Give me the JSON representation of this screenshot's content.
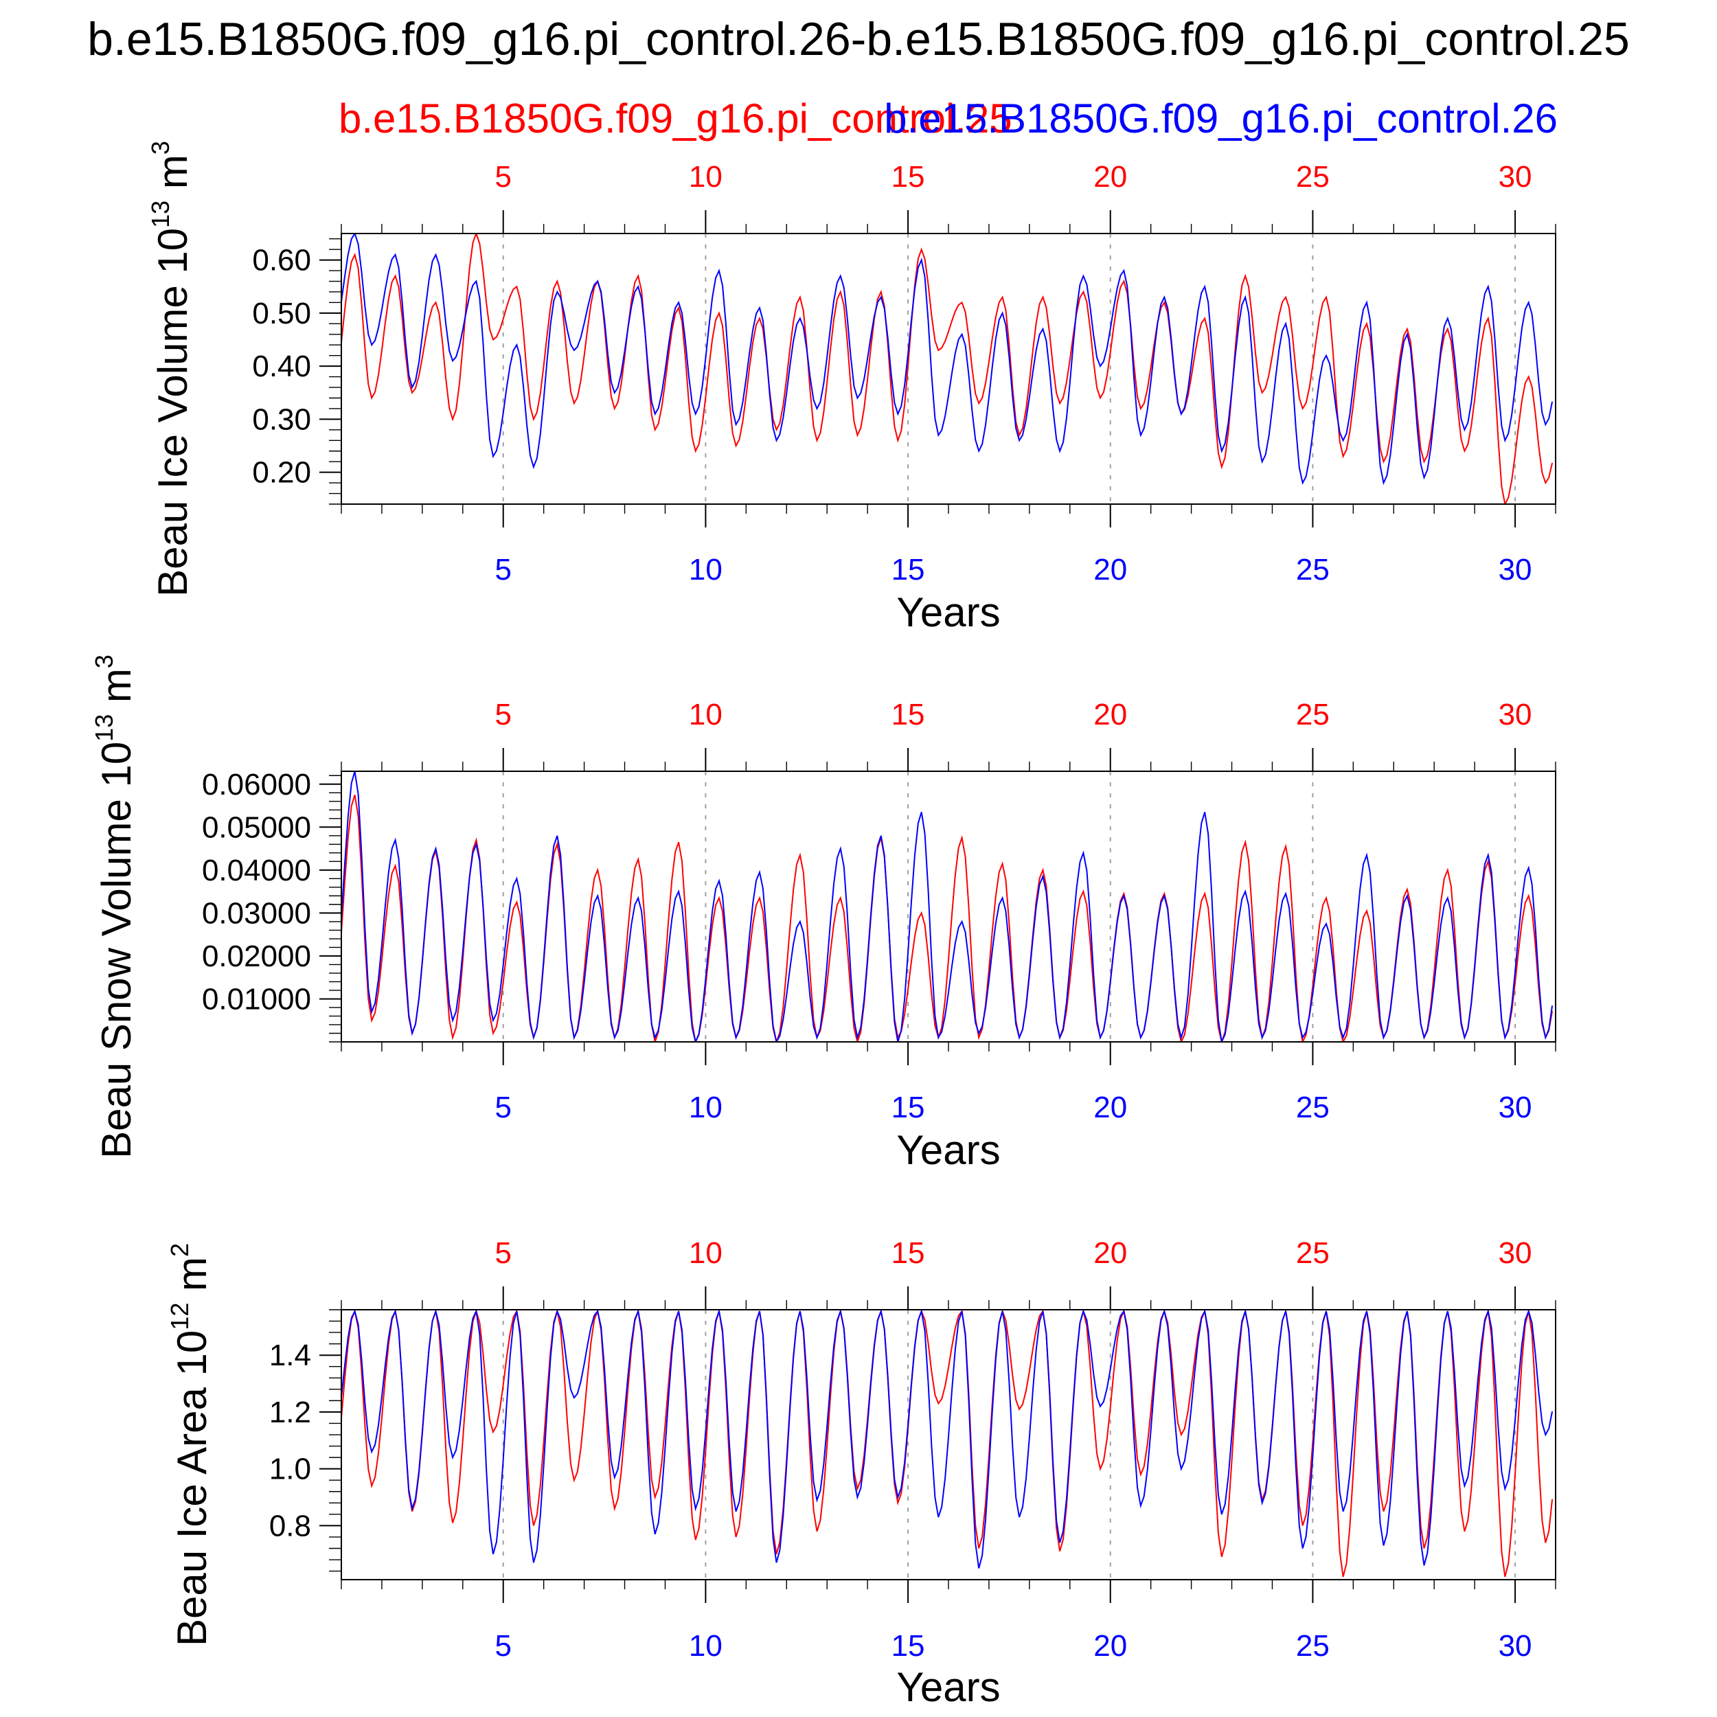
{
  "figure": {
    "title": "b.e15.B1850G.f09_g16.pi_control.26-b.e15.B1850G.f09_g16.pi_control.25",
    "legend": [
      {
        "label": "b.e15.B1850G.f09_g16.pi_control.25",
        "color": "#ff0000"
      },
      {
        "label": "b.e15.B1850G.f09_g16.pi_control.26",
        "color": "#0000ff"
      }
    ]
  },
  "chart_data": [
    {
      "type": "line",
      "title": "",
      "xlabel": "Years",
      "ylabel": "Beau Ice Volume 10^13 m^3",
      "ylabel_parts": {
        "base": "Beau Ice Volume 10",
        "exp1": "13",
        "unit": " m",
        "exp2": "3"
      },
      "xlim": [
        1,
        31
      ],
      "ylim": [
        0.14,
        0.65
      ],
      "yticks": [
        0.2,
        0.3,
        0.4,
        0.5,
        0.6
      ],
      "ytick_labels": [
        "0.20",
        "0.30",
        "0.40",
        "0.50",
        "0.60"
      ],
      "xticks": [
        5,
        10,
        15,
        20,
        25,
        30
      ],
      "xtick_labels": [
        "5",
        "10",
        "15",
        "20",
        "25",
        "30"
      ],
      "series": [
        {
          "name": "b.e15.B1850G.f09_g16.pi_control.25",
          "color": "#ff0000",
          "x_start": 1,
          "points_per_year": 1,
          "max": [
            0.61,
            0.57,
            0.52,
            0.65,
            0.55,
            0.56,
            0.56,
            0.57,
            0.51,
            0.5,
            0.49,
            0.53,
            0.54,
            0.54,
            0.62,
            0.52,
            0.53,
            0.53,
            0.54,
            0.56,
            0.52,
            0.49,
            0.57,
            0.53,
            0.53,
            0.48,
            0.47,
            0.47,
            0.49,
            0.38
          ],
          "min": [
            0.34,
            0.35,
            0.3,
            0.45,
            0.3,
            0.33,
            0.32,
            0.28,
            0.24,
            0.25,
            0.28,
            0.26,
            0.27,
            0.26,
            0.43,
            0.33,
            0.27,
            0.33,
            0.34,
            0.32,
            0.31,
            0.21,
            0.35,
            0.32,
            0.23,
            0.22,
            0.22,
            0.24,
            0.14,
            0.18
          ]
        },
        {
          "name": "b.e15.B1850G.f09_g16.pi_control.26",
          "color": "#0000ff",
          "x_start": 1,
          "points_per_year": 1,
          "max": [
            0.65,
            0.61,
            0.61,
            0.56,
            0.44,
            0.54,
            0.56,
            0.55,
            0.52,
            0.58,
            0.51,
            0.49,
            0.57,
            0.53,
            0.6,
            0.46,
            0.5,
            0.47,
            0.57,
            0.58,
            0.53,
            0.55,
            0.53,
            0.48,
            0.42,
            0.52,
            0.46,
            0.49,
            0.55,
            0.52
          ],
          "min": [
            0.44,
            0.36,
            0.41,
            0.23,
            0.21,
            0.43,
            0.35,
            0.31,
            0.31,
            0.29,
            0.26,
            0.32,
            0.34,
            0.31,
            0.27,
            0.24,
            0.26,
            0.24,
            0.4,
            0.27,
            0.31,
            0.24,
            0.22,
            0.18,
            0.26,
            0.18,
            0.19,
            0.28,
            0.26,
            0.29
          ]
        }
      ]
    },
    {
      "type": "line",
      "title": "",
      "xlabel": "Years",
      "ylabel": "Beau Snow Volume 10^13 m^3",
      "ylabel_parts": {
        "base": "Beau Snow Volume 10",
        "exp1": "13",
        "unit": " m",
        "exp2": "3"
      },
      "xlim": [
        1,
        31
      ],
      "ylim": [
        0.0,
        0.063
      ],
      "yticks": [
        0.01,
        0.02,
        0.03,
        0.04,
        0.05,
        0.06
      ],
      "ytick_labels": [
        "0.01000",
        "0.02000",
        "0.03000",
        "0.04000",
        "0.05000",
        "0.06000"
      ],
      "xticks": [
        5,
        10,
        15,
        20,
        25,
        30
      ],
      "xtick_labels": [
        "5",
        "10",
        "15",
        "20",
        "25",
        "30"
      ],
      "series": [
        {
          "name": "b.e15.B1850G.f09_g16.pi_control.25",
          "color": "#ff0000",
          "x_start": 1,
          "points_per_year": 1,
          "max": [
            0.0575,
            0.041,
            0.0445,
            0.047,
            0.0325,
            0.046,
            0.04,
            0.0425,
            0.0465,
            0.0335,
            0.0335,
            0.0435,
            0.0335,
            0.0475,
            0.03,
            0.0475,
            0.0415,
            0.04,
            0.035,
            0.0345,
            0.0345,
            0.0345,
            0.0465,
            0.0455,
            0.0335,
            0.0305,
            0.0355,
            0.04,
            0.042,
            0.034
          ],
          "min": [
            0.005,
            0.002,
            0.001,
            0.002,
            0.001,
            0.001,
            0.001,
            0.0,
            0.0,
            0.001,
            0.0,
            0.001,
            0.0,
            0.001,
            0.001,
            0.001,
            0.001,
            0.001,
            0.001,
            0.001,
            0.0,
            0.0,
            0.001,
            0.0,
            0.0,
            0.001,
            0.001,
            0.001,
            0.001,
            0.001
          ]
        },
        {
          "name": "b.e15.B1850G.f09_g16.pi_control.26",
          "color": "#0000ff",
          "x_start": 1,
          "points_per_year": 1,
          "max": [
            0.063,
            0.047,
            0.045,
            0.046,
            0.038,
            0.048,
            0.034,
            0.0335,
            0.035,
            0.0375,
            0.0395,
            0.028,
            0.045,
            0.048,
            0.0535,
            0.028,
            0.0335,
            0.0385,
            0.044,
            0.034,
            0.034,
            0.0535,
            0.035,
            0.0345,
            0.0275,
            0.0435,
            0.034,
            0.0335,
            0.0435,
            0.0405
          ],
          "min": [
            0.007,
            0.002,
            0.005,
            0.005,
            0.001,
            0.001,
            0.001,
            0.001,
            0.0,
            0.001,
            0.0,
            0.001,
            0.001,
            0.0,
            0.001,
            0.002,
            0.001,
            0.001,
            0.001,
            0.001,
            0.001,
            0.0,
            0.001,
            0.001,
            0.001,
            0.001,
            0.001,
            0.001,
            0.001,
            0.001
          ]
        }
      ]
    },
    {
      "type": "line",
      "title": "",
      "xlabel": "Years",
      "ylabel": "Beau Ice Area 10^12 m^2",
      "ylabel_parts": {
        "base": "Beau Ice Area 10",
        "exp1": "12",
        "unit": " m",
        "exp2": "2"
      },
      "xlim": [
        1,
        31
      ],
      "ylim": [
        0.61,
        1.56
      ],
      "yticks": [
        0.8,
        1.0,
        1.2,
        1.4
      ],
      "ytick_labels": [
        "0.8",
        "1.0",
        "1.2",
        "1.4"
      ],
      "xticks": [
        5,
        10,
        15,
        20,
        25,
        30
      ],
      "xtick_labels": [
        "5",
        "10",
        "15",
        "20",
        "25",
        "30"
      ],
      "series": [
        {
          "name": "b.e15.B1850G.f09_g16.pi_control.25",
          "color": "#ff0000",
          "x_start": 1,
          "points_per_year": 1,
          "max": [
            1.555,
            1.555,
            1.555,
            1.555,
            1.555,
            1.555,
            1.555,
            1.555,
            1.555,
            1.555,
            1.555,
            1.555,
            1.555,
            1.555,
            1.555,
            1.555,
            1.555,
            1.555,
            1.555,
            1.555,
            1.555,
            1.555,
            1.555,
            1.555,
            1.555,
            1.555,
            1.555,
            1.555,
            1.555,
            1.555
          ],
          "min": [
            0.94,
            0.85,
            0.81,
            1.13,
            0.8,
            0.96,
            0.86,
            0.9,
            0.75,
            0.76,
            0.7,
            0.78,
            0.93,
            0.88,
            1.23,
            0.72,
            1.21,
            0.71,
            1.0,
            0.98,
            1.12,
            0.69,
            0.89,
            0.8,
            0.62,
            0.85,
            0.72,
            0.78,
            0.62,
            0.74
          ]
        },
        {
          "name": "b.e15.B1850G.f09_g16.pi_control.26",
          "color": "#0000ff",
          "x_start": 1,
          "points_per_year": 1,
          "max": [
            1.555,
            1.555,
            1.555,
            1.555,
            1.555,
            1.555,
            1.555,
            1.555,
            1.555,
            1.555,
            1.555,
            1.555,
            1.555,
            1.555,
            1.555,
            1.555,
            1.555,
            1.555,
            1.555,
            1.555,
            1.555,
            1.555,
            1.555,
            1.555,
            1.555,
            1.555,
            1.555,
            1.555,
            1.555,
            1.555
          ],
          "min": [
            1.06,
            0.86,
            1.04,
            0.7,
            0.67,
            1.25,
            0.97,
            0.77,
            0.86,
            0.85,
            0.67,
            0.89,
            0.9,
            0.9,
            0.83,
            0.65,
            0.83,
            0.74,
            1.22,
            0.87,
            1.0,
            0.84,
            0.88,
            0.72,
            0.85,
            0.73,
            0.66,
            0.94,
            0.93,
            1.12
          ]
        }
      ]
    }
  ]
}
